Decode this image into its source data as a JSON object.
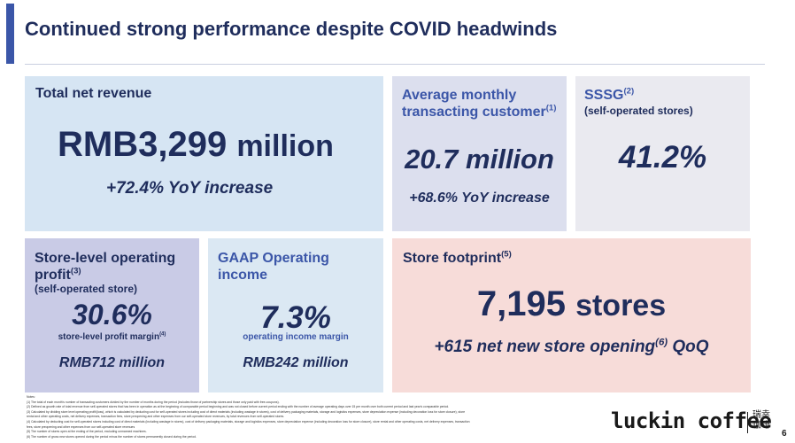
{
  "slide": {
    "title": "Continued strong performance despite COVID headwinds",
    "page_number": "6"
  },
  "tiles": {
    "revenue": {
      "label": "Total net revenue",
      "value": "RMB3,299",
      "unit": "million",
      "sub": "+72.4% YoY increase"
    },
    "customers": {
      "label": "Average monthly transacting customer",
      "note_ref": "(1)",
      "value": "20.7 million",
      "sub": "+68.6% YoY increase"
    },
    "sssg": {
      "label": "SSSG",
      "note_ref": "(2)",
      "qualifier": "(self-operated stores)",
      "value": "41.2%"
    },
    "store_profit": {
      "label": "Store-level operating profit",
      "note_ref": "(3)",
      "qualifier": "(self-operated store)",
      "value": "30.6%",
      "caption": "store-level profit margin",
      "caption_ref": "(4)",
      "amount": "RMB712 million"
    },
    "gaap": {
      "label": "GAAP Operating income",
      "value": "7.3%",
      "caption": "operating income margin",
      "amount": "RMB242 million"
    },
    "footprint": {
      "label": "Store footprint",
      "note_ref": "(5)",
      "value": "7,195",
      "unit": "stores",
      "sub_before": "+615 net new store opening",
      "sub_ref": "(6)",
      "sub_after": " QoQ"
    }
  },
  "notes": {
    "heading": "Notes:",
    "lines": [
      "(1) The total of each month's number of transacting customers divided by the number of months during the period (includes those of partnership stores and those only paid with free-coupons).",
      "(2) Defined as growth rate of total revenue from self-operated stores that has been in operation as at the beginning of comparable period beginning and was not closed before current period ending with the number of average operating days over 15 per month over both current period and last year's comparable period.",
      "(3) Calculated by dividing store level operating profit/(loss), which is calculated by deducting cost for self-operated stores including cost of direct materials (including wastage in stores), cost of delivery packaging materials, storage and logistics expenses, store depreciation expense (including decoration loss for store closure), store",
      "rental and other operating costs, net delivery expenses, transaction fees, store preopening and other expenses from our self-operated store revenues, by total revenues from self-operated stores.",
      "(4) Calculated by deducting cost for self-operated stores including cost of direct materials (including wastage in stores), cost of delivery packaging materials, storage and logistics expenses, store depreciation expense (including decoration loss for store closure), store rental and other operating costs, net delivery expenses, transaction",
      "fees, store preopening and other expenses from our self-operated store revenues",
      "(5) The number of stores open at the ending of the period, excluding unmanned machines.",
      "(6) The number of gross new stores opened during the period minus the number of stores permanently closed during the period."
    ]
  },
  "brand": {
    "logo_text": "luckin coffee",
    "logo_cn": "瑞幸咖啡"
  }
}
